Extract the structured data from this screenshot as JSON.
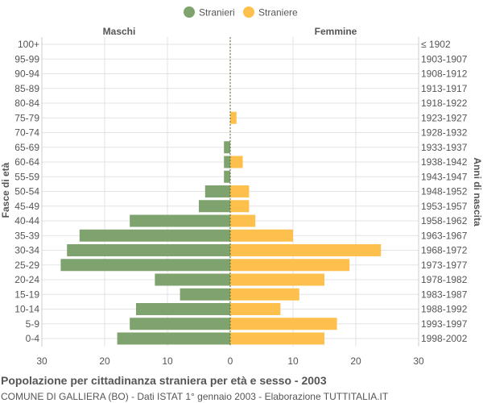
{
  "chart_data": {
    "type": "bar",
    "orientation": "horizontal-population-pyramid",
    "title": "Popolazione per cittadinanza straniera per età e sesso - 2003",
    "subtitle": "COMUNE DI GALLIERA (BO) - Dati ISTAT 1° gennaio 2003 - Elaborazione TUTTITALIA.IT",
    "left_header": "Maschi",
    "right_header": "Femmine",
    "ylabel_left": "Fasce di età",
    "ylabel_right": "Anni di nascita",
    "categories": [
      "100+",
      "95-99",
      "90-94",
      "85-89",
      "80-84",
      "75-79",
      "70-74",
      "65-69",
      "60-64",
      "55-59",
      "50-54",
      "45-49",
      "40-44",
      "35-39",
      "30-34",
      "25-29",
      "20-24",
      "15-19",
      "10-14",
      "5-9",
      "0-4"
    ],
    "birth_years": [
      "≤ 1902",
      "1903-1907",
      "1908-1912",
      "1913-1917",
      "1918-1922",
      "1923-1927",
      "1928-1932",
      "1933-1937",
      "1938-1942",
      "1943-1947",
      "1948-1952",
      "1953-1957",
      "1958-1962",
      "1963-1967",
      "1968-1972",
      "1973-1977",
      "1978-1982",
      "1983-1987",
      "1988-1992",
      "1993-1997",
      "1998-2002"
    ],
    "series": [
      {
        "name": "Stranieri",
        "color": "#7fa36e",
        "values": [
          0,
          0,
          0,
          0,
          0,
          0,
          0,
          1,
          1,
          1,
          4,
          5,
          16,
          24,
          26,
          27,
          12,
          8,
          15,
          16,
          18
        ]
      },
      {
        "name": "Straniere",
        "color": "#fdc04d",
        "values": [
          0,
          0,
          0,
          0,
          0,
          1,
          0,
          0,
          2,
          0,
          3,
          3,
          4,
          10,
          24,
          19,
          15,
          11,
          8,
          17,
          15
        ]
      }
    ],
    "xlim": [
      -30,
      30
    ],
    "x_ticks": [
      "30",
      "20",
      "10",
      "0",
      "10",
      "20",
      "30"
    ],
    "grid": true,
    "legend_position": "top-center"
  }
}
